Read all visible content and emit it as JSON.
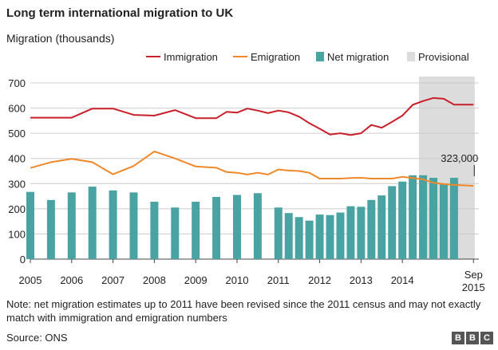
{
  "title": "Long term international migration to UK",
  "subtitle": "Migration (thousands)",
  "note": "Note: net migration estimates up to 2011 have been revised since the 2011 census and may not exactly match with immigration and emigration numbers",
  "source": "Source: ONS",
  "logo": [
    "B",
    "B",
    "C"
  ],
  "chart_data": {
    "type": "bar+line",
    "ylim": [
      0,
      700
    ],
    "yticks": [
      0,
      100,
      200,
      300,
      400,
      500,
      600,
      700
    ],
    "xticks": [
      "2005",
      "2006",
      "2007",
      "2008",
      "2009",
      "2010",
      "2011",
      "2012",
      "2013",
      "2014"
    ],
    "xtick_end": [
      "Sep",
      "2015"
    ],
    "grid": true,
    "legend_position": "top-right",
    "legend": [
      {
        "name": "Immigration",
        "kind": "line",
        "color": "#c8202a"
      },
      {
        "name": "Emigration",
        "kind": "line",
        "color": "#f0882a"
      },
      {
        "name": "Net migration",
        "kind": "bar",
        "color": "#4aa3a3"
      },
      {
        "name": "Provisional",
        "kind": "shade",
        "color": "#dcdcdc"
      }
    ],
    "annotation": {
      "label": "323,000",
      "x": 2015.72,
      "y": 323
    },
    "provisional_range": [
      2014.4,
      2015.75
    ],
    "immigration": {
      "x": [
        2005.0,
        2005.5,
        2006.0,
        2006.5,
        2007.0,
        2007.5,
        2008.0,
        2008.5,
        2009.0,
        2009.5,
        2009.75,
        2010.0,
        2010.25,
        2010.5,
        2010.75,
        2011.0,
        2011.25,
        2011.5,
        2011.75,
        2012.0,
        2012.25,
        2012.5,
        2012.75,
        2013.0,
        2013.25,
        2013.5,
        2013.75,
        2014.0,
        2014.25,
        2014.5,
        2014.75,
        2015.0,
        2015.25,
        2015.5,
        2015.72
      ],
      "values": [
        562,
        562,
        562,
        598,
        598,
        573,
        570,
        592,
        560,
        560,
        585,
        582,
        598,
        590,
        580,
        590,
        583,
        566,
        540,
        518,
        495,
        500,
        493,
        500,
        533,
        522,
        545,
        570,
        613,
        628,
        640,
        637,
        614,
        614,
        614
      ]
    },
    "emigration": {
      "x": [
        2005.0,
        2005.5,
        2006.0,
        2006.5,
        2007.0,
        2007.5,
        2008.0,
        2008.5,
        2009.0,
        2009.5,
        2009.75,
        2010.0,
        2010.25,
        2010.5,
        2010.75,
        2011.0,
        2011.25,
        2011.5,
        2011.75,
        2012.0,
        2012.25,
        2012.5,
        2012.75,
        2013.0,
        2013.25,
        2013.5,
        2013.75,
        2014.0,
        2014.25,
        2014.5,
        2014.75,
        2015.0,
        2015.25,
        2015.5,
        2015.72
      ],
      "values": [
        362,
        385,
        398,
        385,
        337,
        370,
        428,
        400,
        368,
        363,
        346,
        343,
        336,
        343,
        336,
        356,
        352,
        350,
        343,
        320,
        320,
        320,
        322,
        323,
        320,
        320,
        320,
        327,
        322,
        317,
        303,
        298,
        295,
        293,
        291
      ]
    },
    "net_migration": {
      "x": [
        2005.0,
        2005.5,
        2006.0,
        2006.5,
        2007.0,
        2007.5,
        2008.0,
        2008.5,
        2009.0,
        2009.5,
        2010.0,
        2010.5,
        2011.0,
        2011.25,
        2011.5,
        2011.75,
        2012.0,
        2012.25,
        2012.5,
        2012.75,
        2013.0,
        2013.25,
        2013.5,
        2013.75,
        2014.0,
        2014.25,
        2014.5,
        2014.75,
        2015.0,
        2015.25
      ],
      "values": [
        267,
        235,
        265,
        288,
        273,
        265,
        228,
        205,
        228,
        247,
        255,
        262,
        205,
        183,
        167,
        153,
        177,
        175,
        185,
        210,
        208,
        235,
        253,
        290,
        308,
        333,
        333,
        323,
        300,
        323
      ]
    }
  }
}
